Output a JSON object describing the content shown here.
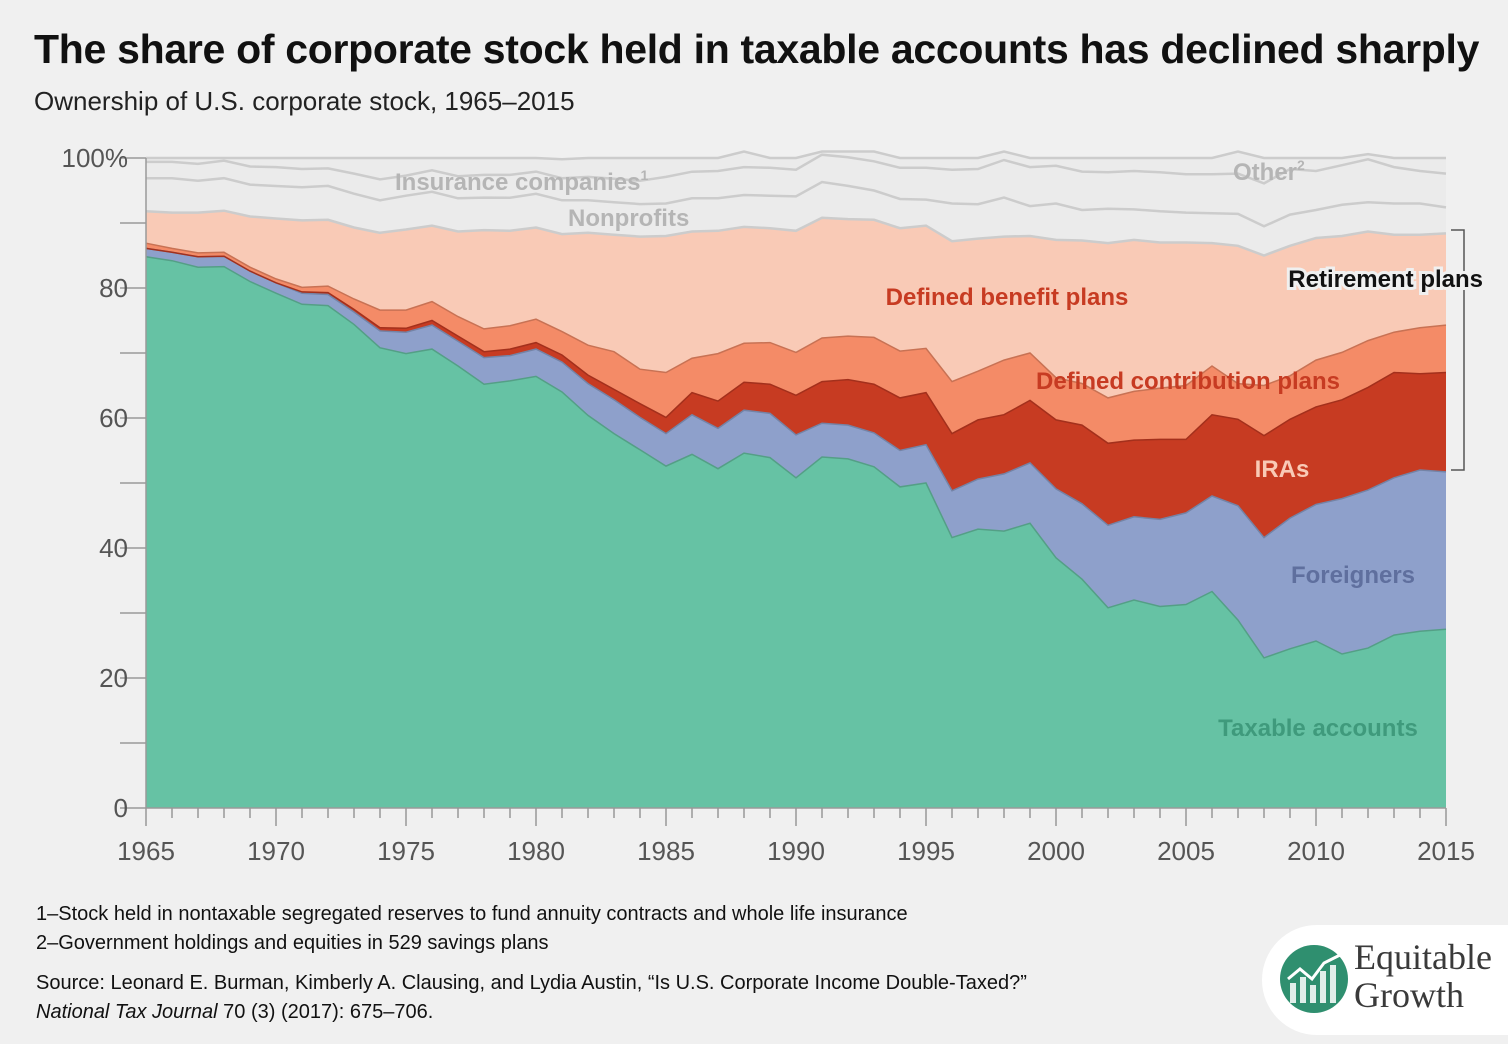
{
  "title": "The share of corporate stock held in taxable accounts has declined sharply",
  "subtitle": "Ownership of U.S. corporate stock, 1965–2015",
  "footnotes": [
    "1–Stock held in nontaxable segregated reserves to fund annuity contracts and whole life insurance",
    "2–Government holdings and equities in 529 savings plans"
  ],
  "source": {
    "line1": "Source: Leonard E. Burman, Kimberly A. Clausing, and Lydia Austin, “Is U.S. Corporate Income Double-Taxed?”",
    "journal": "National Tax Journal",
    "line2_rest": " 70 (3) (2017): 675–706."
  },
  "logo": {
    "line1": "Equitable",
    "line2": "Growth"
  },
  "chart_data": {
    "type": "area",
    "stacked": true,
    "x": [
      1965,
      1966,
      1967,
      1968,
      1969,
      1970,
      1971,
      1972,
      1973,
      1974,
      1975,
      1976,
      1977,
      1978,
      1979,
      1980,
      1981,
      1982,
      1983,
      1984,
      1985,
      1986,
      1987,
      1988,
      1989,
      1990,
      1991,
      1992,
      1993,
      1994,
      1995,
      1996,
      1997,
      1998,
      1999,
      2000,
      2001,
      2002,
      2003,
      2004,
      2005,
      2006,
      2007,
      2008,
      2009,
      2010,
      2011,
      2012,
      2013,
      2014,
      2015
    ],
    "x_ticks": [
      "1965",
      "1970",
      "1975",
      "1980",
      "1985",
      "1990",
      "1995",
      "2000",
      "2005",
      "2010",
      "2015"
    ],
    "y_ticks": [
      "0",
      "20",
      "40",
      "60",
      "80",
      "100%"
    ],
    "ylim": [
      0,
      100
    ],
    "xlim": [
      1965,
      2015
    ],
    "grid": false,
    "colors": {
      "taxable": "#66c2a4",
      "foreigners": "#8ea0cb",
      "iras": "#c73b22",
      "dc": "#f48b67",
      "db": "#f9cab6",
      "nonprofits": "#ebebeb",
      "insurance": "#ebebeb",
      "other": "#ebebeb",
      "boundary": "#cccccc"
    },
    "series": [
      {
        "name": "Taxable accounts",
        "key": "taxable",
        "values": [
          84.8,
          84.2,
          83.2,
          83.3,
          81.0,
          79.2,
          77.5,
          77.3,
          74.4,
          70.8,
          69.9,
          70.6,
          68.0,
          65.2,
          65.7,
          66.4,
          64.0,
          60.4,
          57.6,
          55.1,
          52.6,
          54.4,
          52.2,
          54.6,
          53.9,
          50.8,
          54.0,
          53.7,
          52.5,
          49.4,
          50.0,
          41.6,
          42.9,
          42.6,
          43.8,
          38.5,
          35.2,
          30.8,
          32.0,
          31.0,
          31.3,
          33.3,
          28.9,
          23.1,
          24.5,
          25.7,
          23.7,
          24.6,
          26.6,
          27.2,
          27.5
        ]
      },
      {
        "name": "Foreigners",
        "key": "foreigners",
        "values": [
          1.3,
          1.3,
          1.6,
          1.6,
          1.6,
          1.6,
          1.7,
          1.7,
          1.9,
          2.6,
          3.3,
          3.7,
          3.8,
          4.1,
          3.9,
          4.2,
          4.6,
          4.9,
          5.2,
          5.0,
          5.0,
          6.1,
          6.2,
          6.6,
          6.8,
          6.6,
          5.2,
          5.2,
          5.2,
          5.6,
          5.9,
          7.2,
          7.7,
          8.8,
          9.3,
          10.6,
          11.6,
          12.7,
          12.8,
          13.4,
          14.1,
          14.7,
          17.6,
          18.5,
          20.1,
          21.0,
          23.9,
          24.3,
          24.2,
          24.8,
          24.2
        ]
      },
      {
        "name": "IRAs",
        "key": "iras",
        "values": [
          0,
          0,
          0,
          0,
          0,
          0,
          0.2,
          0.3,
          0.4,
          0.5,
          0.6,
          0.7,
          0.8,
          0.9,
          1.0,
          1.0,
          1.1,
          1.3,
          1.6,
          2.1,
          2.5,
          3.4,
          4.2,
          4.3,
          4.5,
          6.1,
          6.4,
          7.0,
          7.5,
          8.1,
          8.0,
          8.8,
          9.1,
          9.1,
          9.6,
          10.6,
          12.1,
          12.6,
          11.8,
          12.3,
          11.3,
          12.5,
          13.3,
          15.7,
          15.2,
          15.0,
          15.2,
          15.8,
          16.2,
          14.8,
          15.3
        ]
      },
      {
        "name": "Defined contribution plans",
        "key": "dc",
        "values": [
          0.8,
          0.6,
          0.6,
          0.6,
          0.6,
          0.6,
          0.7,
          1.0,
          1.6,
          2.7,
          2.8,
          2.9,
          3.0,
          3.5,
          3.6,
          3.6,
          3.6,
          4.6,
          5.8,
          5.3,
          6.9,
          5.3,
          7.3,
          6.0,
          6.4,
          6.6,
          6.7,
          6.7,
          7.2,
          7.2,
          6.8,
          8.0,
          7.5,
          8.4,
          7.3,
          6.5,
          6.4,
          7.0,
          7.5,
          7.9,
          8.3,
          7.5,
          5.5,
          7.7,
          6.7,
          7.2,
          7.3,
          7.2,
          6.2,
          7.1,
          7.3
        ]
      },
      {
        "name": "Defined benefit plans",
        "key": "db",
        "values": [
          4.9,
          5.5,
          6.2,
          6.4,
          7.8,
          9.3,
          10.3,
          10.2,
          11.0,
          11.9,
          12.4,
          11.7,
          13.1,
          15.2,
          14.6,
          14.1,
          15.0,
          17.3,
          18.0,
          20.4,
          21.0,
          19.5,
          18.9,
          17.9,
          17.6,
          18.7,
          18.5,
          18.0,
          18.1,
          18.9,
          18.9,
          21.6,
          20.4,
          19.0,
          18.0,
          21.2,
          22.0,
          23.8,
          23.3,
          22.4,
          22.0,
          18.9,
          21.2,
          20.0,
          20.0,
          18.8,
          17.9,
          16.8,
          15.0,
          14.3,
          14.1
        ]
      },
      {
        "name": "Nonprofits",
        "key": "nonprofits",
        "values": [
          5.1,
          5.3,
          4.9,
          5.0,
          4.9,
          5.0,
          5.1,
          5.2,
          5.2,
          5.0,
          5.2,
          5.2,
          5.1,
          5.0,
          5.1,
          5.2,
          5.2,
          5.0,
          5.0,
          5.0,
          5.0,
          5.1,
          5.0,
          4.9,
          5.0,
          5.3,
          5.5,
          5.1,
          4.5,
          4.5,
          4.0,
          5.8,
          5.3,
          6.0,
          4.6,
          5.6,
          4.7,
          5.3,
          4.7,
          4.8,
          4.6,
          4.6,
          4.9,
          4.5,
          4.8,
          4.3,
          4.8,
          4.5,
          4.8,
          4.8,
          4.0
        ]
      },
      {
        "name": "Insurance companies",
        "key": "insurance",
        "values": [
          2.5,
          2.5,
          2.6,
          2.7,
          2.8,
          2.9,
          2.8,
          2.7,
          3.1,
          3.2,
          3.1,
          3.3,
          3.4,
          3.5,
          3.5,
          3.4,
          3.4,
          3.6,
          3.6,
          3.6,
          4.1,
          4.1,
          4.2,
          4.3,
          4.3,
          4.1,
          4.2,
          4.4,
          4.5,
          4.8,
          4.9,
          5.2,
          5.4,
          5.8,
          6.0,
          5.8,
          5.9,
          5.6,
          5.9,
          6.0,
          5.9,
          6.0,
          6.2,
          6.6,
          7.0,
          6.0,
          6.1,
          6.6,
          5.6,
          5.0,
          5.2
        ]
      },
      {
        "name": "Other",
        "key": "other",
        "values": [
          0.6,
          0.6,
          0.9,
          0.4,
          1.3,
          1.4,
          1.7,
          1.6,
          2.4,
          3.3,
          2.7,
          1.9,
          2.8,
          2.6,
          2.6,
          2.1,
          2.9,
          2.9,
          3.2,
          3.5,
          2.9,
          2.1,
          2.0,
          2.4,
          1.5,
          1.8,
          0.5,
          0.9,
          1.5,
          1.5,
          1.5,
          1.8,
          1.7,
          1.3,
          1.4,
          1.2,
          2.1,
          2.2,
          2.0,
          2.2,
          2.5,
          2.5,
          3.4,
          3.9,
          1.7,
          2.0,
          1.1,
          0.8,
          1.4,
          2.0,
          2.4
        ]
      }
    ],
    "labels": {
      "insurance": "Insurance companies",
      "insurance_sup": "1",
      "other": "Other",
      "other_sup": "2",
      "nonprofits": "Nonprofits",
      "db": "Defined benefit plans",
      "dc": "Defined contribution plans",
      "iras": "IRAs",
      "foreigners": "Foreigners",
      "taxable": "Taxable accounts",
      "bracket": "Retirement plans"
    }
  }
}
